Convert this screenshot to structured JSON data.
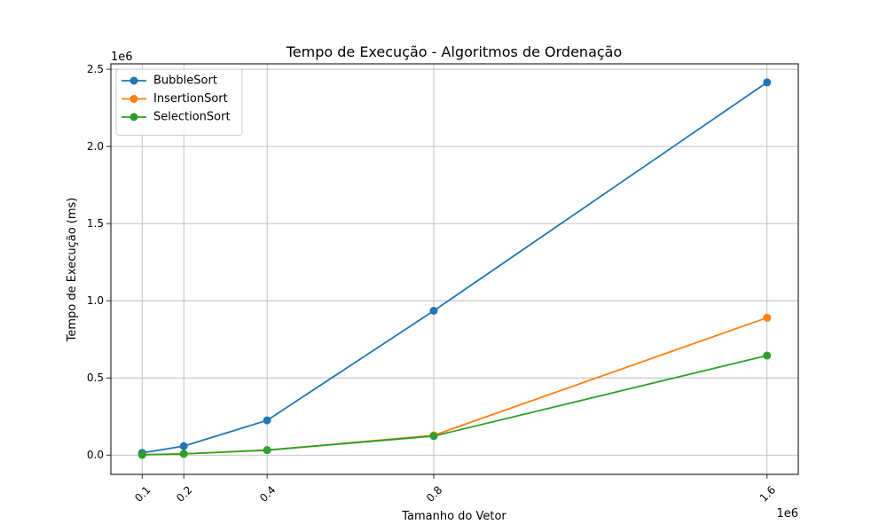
{
  "chart_data": {
    "type": "line",
    "title": "Tempo de Execução - Algoritmos de Ordenação",
    "xlabel": "Tamanho do Vetor",
    "ylabel": "Tempo de Execução (ms)",
    "x_offset_label": "1e6",
    "y_offset_label": "1e6",
    "x": [
      100000,
      200000,
      400000,
      800000,
      1600000
    ],
    "x_ticks": [
      100000,
      200000,
      400000,
      800000,
      1600000
    ],
    "x_tick_labels": [
      "0.1",
      "0.2",
      "0.4",
      "0.8",
      "1.6"
    ],
    "y_ticks": [
      0,
      500000,
      1000000,
      1500000,
      2000000,
      2500000
    ],
    "y_tick_labels": [
      "0.0",
      "0.5",
      "1.0",
      "1.5",
      "2.0",
      "2.5"
    ],
    "xlim": [
      25000,
      1675000
    ],
    "ylim": [
      -125000,
      2535000
    ],
    "grid": true,
    "legend_position": "top-left",
    "series": [
      {
        "name": "BubbleSort",
        "color": "#1f77b4",
        "values": [
          14000,
          58000,
          225000,
          935000,
          2415000
        ]
      },
      {
        "name": "InsertionSort",
        "color": "#ff7f0e",
        "values": [
          2000,
          8000,
          32000,
          128000,
          890000
        ]
      },
      {
        "name": "SelectionSort",
        "color": "#2ca02c",
        "values": [
          2000,
          8000,
          32000,
          123000,
          645000
        ]
      }
    ]
  }
}
